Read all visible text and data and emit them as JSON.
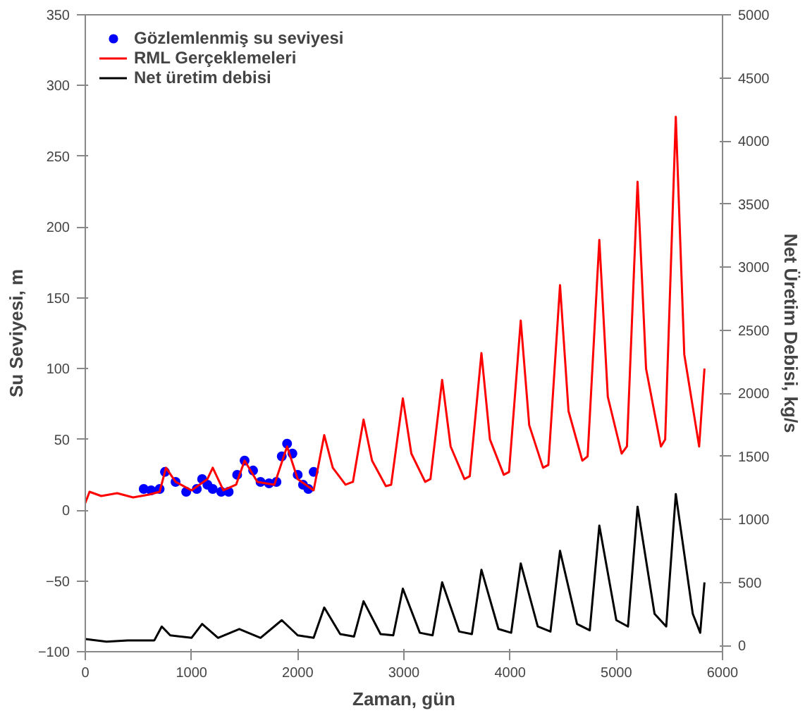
{
  "chart_data": {
    "type": "line",
    "xlabel": "Zaman, gün",
    "ylabel": "Su Seviyesi, m",
    "y2label": "Net Üretim Debisi, kg/s",
    "xlim": [
      0,
      6000
    ],
    "xticks": [
      0,
      1000,
      2000,
      3000,
      4000,
      5000,
      6000
    ],
    "ylim": [
      -100,
      350
    ],
    "yticks": [
      -100,
      -50,
      0,
      50,
      100,
      150,
      200,
      250,
      300,
      350
    ],
    "y2lim": [
      -50,
      5000
    ],
    "y2ticks": [
      0,
      500,
      1000,
      1500,
      2000,
      2500,
      3000,
      3500,
      4000,
      4500,
      5000
    ],
    "grid": false,
    "legend": "top left",
    "series": [
      {
        "name": "Gözlemlenmiş su seviyesi",
        "type": "scatter",
        "marker": "circle",
        "color": "#0000ff",
        "x": [
          550,
          620,
          700,
          750,
          850,
          950,
          1050,
          1100,
          1150,
          1200,
          1280,
          1350,
          1430,
          1500,
          1580,
          1650,
          1730,
          1800,
          1850,
          1900,
          1950,
          2000,
          2050,
          2100,
          2150
        ],
        "values": [
          15,
          14,
          15,
          27,
          20,
          13,
          15,
          22,
          18,
          15,
          13,
          13,
          25,
          35,
          28,
          20,
          19,
          20,
          38,
          47,
          40,
          25,
          18,
          15,
          27
        ]
      },
      {
        "name": "RML Gerçeklemeleri",
        "color": "#ff0000",
        "x": [
          0,
          40,
          150,
          300,
          450,
          600,
          700,
          760,
          850,
          1000,
          1150,
          1200,
          1300,
          1420,
          1500,
          1620,
          1780,
          1900,
          2000,
          2150,
          2250,
          2330,
          2450,
          2520,
          2620,
          2700,
          2830,
          2880,
          2990,
          3070,
          3200,
          3250,
          3360,
          3440,
          3570,
          3620,
          3730,
          3810,
          3940,
          3990,
          4100,
          4180,
          4310,
          4360,
          4470,
          4550,
          4680,
          4730,
          4840,
          4920,
          5050,
          5100,
          5200,
          5280,
          5420,
          5460,
          5560,
          5640,
          5780,
          5830
        ],
        "values": [
          5,
          13,
          10,
          12,
          9,
          11,
          13,
          30,
          20,
          14,
          22,
          30,
          14,
          18,
          35,
          20,
          18,
          45,
          22,
          14,
          53,
          30,
          18,
          20,
          64,
          35,
          17,
          18,
          79,
          40,
          20,
          22,
          92,
          45,
          22,
          24,
          111,
          50,
          25,
          27,
          134,
          60,
          30,
          32,
          159,
          70,
          35,
          38,
          191,
          80,
          40,
          45,
          232,
          100,
          45,
          50,
          278,
          110,
          45,
          100
        ]
      },
      {
        "name": "Net üretim debisi",
        "axis": "y2",
        "color": "#000000",
        "x": [
          0,
          200,
          400,
          650,
          720,
          800,
          1000,
          1100,
          1250,
          1450,
          1650,
          1850,
          2000,
          2150,
          2250,
          2400,
          2530,
          2620,
          2780,
          2900,
          2990,
          3150,
          3270,
          3360,
          3520,
          3640,
          3730,
          3890,
          4010,
          4100,
          4260,
          4380,
          4470,
          4630,
          4750,
          4840,
          5000,
          5110,
          5200,
          5360,
          5470,
          5560,
          5720,
          5790,
          5830
        ],
        "values": [
          50,
          30,
          40,
          40,
          150,
          80,
          60,
          170,
          60,
          130,
          60,
          200,
          80,
          60,
          300,
          90,
          70,
          350,
          90,
          80,
          450,
          100,
          80,
          500,
          110,
          90,
          600,
          130,
          100,
          650,
          150,
          110,
          750,
          170,
          120,
          950,
          200,
          150,
          1100,
          250,
          150,
          1200,
          250,
          100,
          500
        ]
      }
    ]
  }
}
